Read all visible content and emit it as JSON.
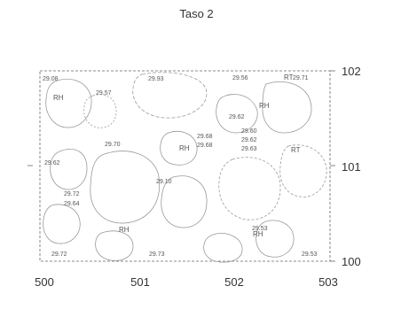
{
  "title": "Taso 2",
  "x_axis": {
    "ticks": [
      "500",
      "501",
      "502",
      "503"
    ]
  },
  "y_axis": {
    "ticks": [
      "102",
      "101",
      "100"
    ]
  },
  "elevation_labels": [
    "29.08",
    "29.57",
    "29.93",
    "29.56",
    "29.71",
    "29.62",
    "29.68",
    "29.68",
    "29.60",
    "29.62",
    "29.63",
    "29.70",
    "29.62",
    "29.10",
    "29.72",
    "29.64",
    "29.53",
    "29.72",
    "29.73",
    "29.53"
  ],
  "zone_labels": [
    "RH",
    "RH",
    "RH",
    "RT",
    "RT",
    "RH",
    "RH"
  ],
  "colors": {
    "outline": "#9a9a9a",
    "frame": "#555555",
    "text": "#333333"
  }
}
